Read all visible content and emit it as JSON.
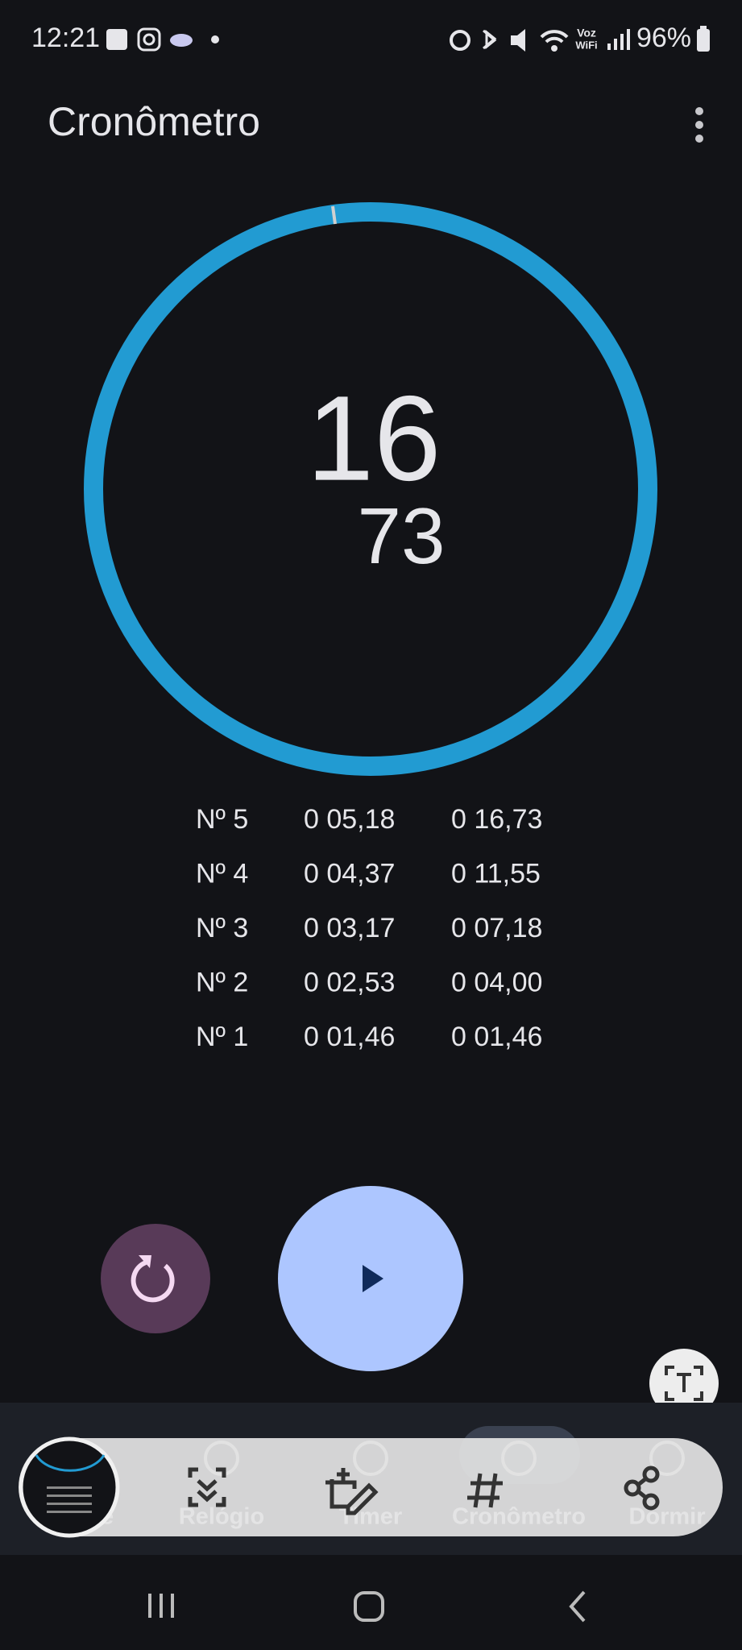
{
  "status_bar": {
    "time": "12:21",
    "wifi_top": "Voz",
    "wifi_bottom": "WiFi",
    "battery": "96%"
  },
  "app_bar": {
    "title": "Cronômetro"
  },
  "stopwatch": {
    "seconds": "16",
    "hundredths": "73"
  },
  "laps": [
    {
      "number": "Nº 5",
      "lap": "0 05,18",
      "total": "0 16,73"
    },
    {
      "number": "Nº 4",
      "lap": "0 04,37",
      "total": "0 11,55"
    },
    {
      "number": "Nº 3",
      "lap": "0 03,17",
      "total": "0 07,18"
    },
    {
      "number": "Nº 2",
      "lap": "0 02,53",
      "total": "0 04,00"
    },
    {
      "number": "Nº 1",
      "lap": "0 01,46",
      "total": "0 01,46"
    }
  ],
  "nav": {
    "items": [
      "Alarme",
      "Relógio",
      "Timer",
      "Cronômetro",
      "Dormir"
    ]
  }
}
